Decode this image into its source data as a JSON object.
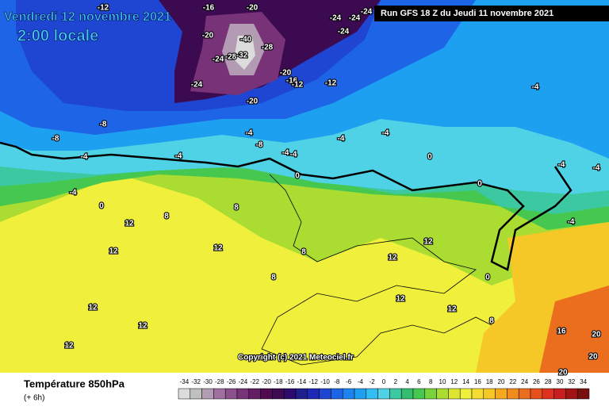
{
  "header": {
    "date": "Vendredi 12 novembre 2021",
    "time": "2:00 locale",
    "run": "Run GFS 18 Z du Jeudi 11 novembre 2021",
    "copyright": "Copyright (c) 2021 Meteociel.fr"
  },
  "footer": {
    "title": "Température 850hPa",
    "step": "(+ 6h)"
  },
  "scale": {
    "values": [
      -34,
      -32,
      -30,
      -28,
      -26,
      -24,
      -22,
      -20,
      -18,
      -16,
      -14,
      -12,
      -10,
      -8,
      -6,
      -4,
      -2,
      0,
      2,
      4,
      6,
      8,
      10,
      12,
      14,
      16,
      18,
      20,
      22,
      24,
      26,
      28,
      30,
      32,
      34
    ],
    "colors": [
      "#dcdcdc",
      "#c0c0c0",
      "#b49bb4",
      "#a070a0",
      "#8c508c",
      "#783278",
      "#641e64",
      "#500a50",
      "#3c0a50",
      "#2d0a6e",
      "#1e1e8c",
      "#1e28b4",
      "#1e46d2",
      "#1e64e6",
      "#1e82f0",
      "#1ea0f0",
      "#32bef0",
      "#50d2e6",
      "#3cc8a0",
      "#32be6e",
      "#46c850",
      "#78d23c",
      "#aadc32",
      "#dce632",
      "#f0f03c",
      "#f5dc32",
      "#f5c828",
      "#f5aa1e",
      "#f08c1e",
      "#eb6e1e",
      "#e6501e",
      "#dc321e",
      "#c81e1e",
      "#a01414",
      "#781010"
    ]
  },
  "contour_labels": [
    -12,
    -16,
    -20,
    -24,
    -24,
    -24,
    -24,
    -20,
    -40,
    -28,
    -24,
    -28,
    -32,
    -24,
    -20,
    -20,
    -16,
    -12,
    -12,
    -8,
    -8,
    -4,
    -4,
    -4,
    -8,
    -4,
    -4,
    0,
    -4,
    -4,
    0,
    -4,
    -4,
    -4,
    0,
    -4,
    0,
    8,
    8,
    12,
    12,
    12,
    8,
    12,
    12,
    8,
    12,
    12,
    12,
    12,
    12,
    8,
    16,
    20,
    20,
    20,
    -4,
    0
  ]
}
